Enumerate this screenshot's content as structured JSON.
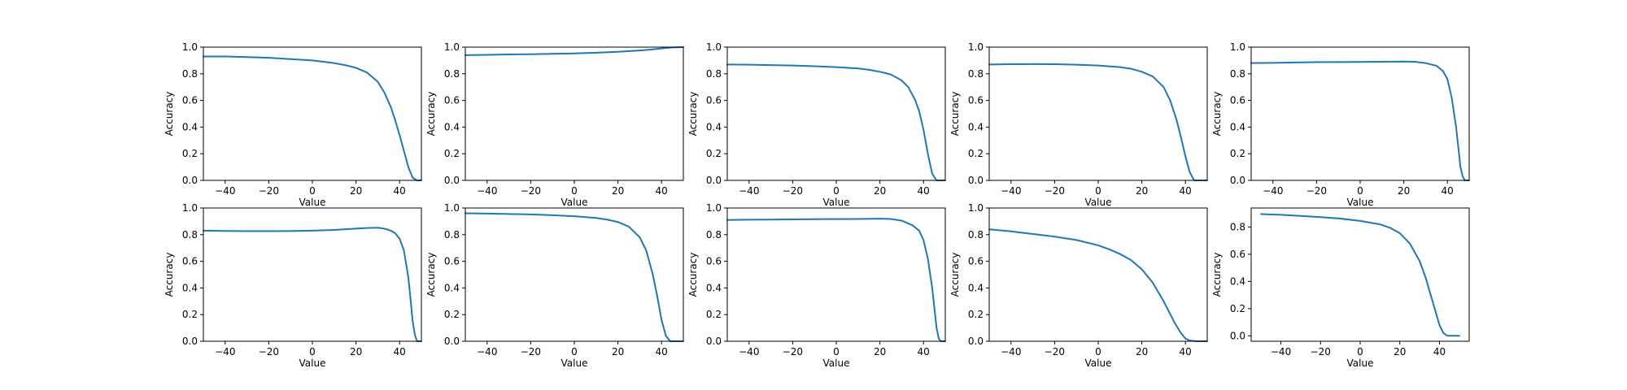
{
  "colors": {
    "line": "#1f77b4",
    "axis": "#000000",
    "background": "#ffffff"
  },
  "chart_data": [
    {
      "type": "line",
      "title": "",
      "xlabel": "Value",
      "ylabel": "Accuracy",
      "xlim": [
        -50,
        50
      ],
      "ylim": [
        0,
        1
      ],
      "xticks": [
        -40,
        -20,
        0,
        20,
        40
      ],
      "yticks": [
        0,
        0.2,
        0.4,
        0.6,
        0.8,
        1
      ],
      "xtick_labels": [
        "−40",
        "−20",
        "0",
        "20",
        "40"
      ],
      "ytick_labels": [
        "0.0",
        "0.2",
        "0.4",
        "0.6",
        "0.8",
        "1.0"
      ],
      "grid": false,
      "x": [
        -50,
        -40,
        -30,
        -20,
        -10,
        0,
        10,
        15,
        20,
        25,
        30,
        33,
        36,
        38,
        40,
        42,
        44,
        46,
        48,
        50
      ],
      "series": [
        {
          "values": [
            0.93,
            0.93,
            0.925,
            0.92,
            0.91,
            0.9,
            0.88,
            0.865,
            0.845,
            0.81,
            0.74,
            0.66,
            0.55,
            0.45,
            0.34,
            0.22,
            0.1,
            0.02,
            0.0,
            0.0
          ]
        }
      ]
    },
    {
      "type": "line",
      "title": "",
      "xlabel": "Value",
      "ylabel": "Accuracy",
      "xlim": [
        -50,
        50
      ],
      "ylim": [
        0,
        1
      ],
      "xticks": [
        -40,
        -20,
        0,
        20,
        40
      ],
      "yticks": [
        0,
        0.2,
        0.4,
        0.6,
        0.8,
        1
      ],
      "xtick_labels": [
        "−40",
        "−20",
        "0",
        "20",
        "40"
      ],
      "ytick_labels": [
        "0.0",
        "0.2",
        "0.4",
        "0.6",
        "0.8",
        "1.0"
      ],
      "grid": false,
      "x": [
        -50,
        -40,
        -30,
        -20,
        -10,
        0,
        10,
        20,
        30,
        35,
        40,
        45,
        50
      ],
      "series": [
        {
          "values": [
            0.94,
            0.942,
            0.945,
            0.947,
            0.95,
            0.953,
            0.958,
            0.965,
            0.975,
            0.982,
            0.99,
            0.998,
            1.0
          ]
        }
      ]
    },
    {
      "type": "line",
      "title": "",
      "xlabel": "Value",
      "ylabel": "Accuracy",
      "xlim": [
        -50,
        50
      ],
      "ylim": [
        0,
        1
      ],
      "xticks": [
        -40,
        -20,
        0,
        20,
        40
      ],
      "yticks": [
        0,
        0.2,
        0.4,
        0.6,
        0.8,
        1
      ],
      "xtick_labels": [
        "−40",
        "−20",
        "0",
        "20",
        "40"
      ],
      "ytick_labels": [
        "0.0",
        "0.2",
        "0.4",
        "0.6",
        "0.8",
        "1.0"
      ],
      "grid": false,
      "x": [
        -50,
        -40,
        -30,
        -20,
        -10,
        0,
        10,
        15,
        20,
        25,
        30,
        33,
        36,
        38,
        40,
        42,
        44,
        46,
        48,
        50
      ],
      "series": [
        {
          "values": [
            0.87,
            0.868,
            0.865,
            0.862,
            0.857,
            0.85,
            0.84,
            0.83,
            0.815,
            0.795,
            0.75,
            0.7,
            0.61,
            0.52,
            0.38,
            0.2,
            0.05,
            0.0,
            0.0,
            0.0
          ]
        }
      ]
    },
    {
      "type": "line",
      "title": "",
      "xlabel": "Value",
      "ylabel": "Accuracy",
      "xlim": [
        -50,
        50
      ],
      "ylim": [
        0,
        1
      ],
      "xticks": [
        -40,
        -20,
        0,
        20,
        40
      ],
      "yticks": [
        0,
        0.2,
        0.4,
        0.6,
        0.8,
        1
      ],
      "xtick_labels": [
        "−40",
        "−20",
        "0",
        "20",
        "40"
      ],
      "ytick_labels": [
        "0.0",
        "0.2",
        "0.4",
        "0.6",
        "0.8",
        "1.0"
      ],
      "grid": false,
      "x": [
        -50,
        -40,
        -30,
        -20,
        -10,
        0,
        10,
        15,
        20,
        25,
        30,
        33,
        36,
        38,
        40,
        42,
        44,
        46,
        48,
        50
      ],
      "series": [
        {
          "values": [
            0.87,
            0.872,
            0.873,
            0.872,
            0.868,
            0.862,
            0.85,
            0.838,
            0.815,
            0.78,
            0.7,
            0.6,
            0.45,
            0.32,
            0.18,
            0.06,
            0.0,
            0.0,
            0.0,
            0.0
          ]
        }
      ]
    },
    {
      "type": "line",
      "title": "",
      "xlabel": "Value",
      "ylabel": "Accuracy",
      "xlim": [
        -50,
        50
      ],
      "ylim": [
        0,
        1
      ],
      "xticks": [
        -40,
        -20,
        0,
        20,
        40
      ],
      "yticks": [
        0,
        0.2,
        0.4,
        0.6,
        0.8,
        1
      ],
      "xtick_labels": [
        "−40",
        "−20",
        "0",
        "20",
        "40"
      ],
      "ytick_labels": [
        "0.0",
        "0.2",
        "0.4",
        "0.6",
        "0.8",
        "1.0"
      ],
      "grid": false,
      "x": [
        -50,
        -40,
        -30,
        -20,
        -10,
        0,
        10,
        20,
        25,
        30,
        35,
        38,
        40,
        42,
        44,
        45,
        46,
        47,
        48,
        50
      ],
      "series": [
        {
          "values": [
            0.88,
            0.882,
            0.885,
            0.887,
            0.888,
            0.889,
            0.89,
            0.892,
            0.89,
            0.88,
            0.86,
            0.82,
            0.76,
            0.62,
            0.4,
            0.25,
            0.1,
            0.03,
            0.0,
            0.0
          ]
        }
      ]
    },
    {
      "type": "line",
      "title": "",
      "xlabel": "Value",
      "ylabel": "Accuracy",
      "xlim": [
        -50,
        50
      ],
      "ylim": [
        0,
        1
      ],
      "xticks": [
        -40,
        -20,
        0,
        20,
        40
      ],
      "yticks": [
        0,
        0.2,
        0.4,
        0.6,
        0.8,
        1
      ],
      "xtick_labels": [
        "−40",
        "−20",
        "0",
        "20",
        "40"
      ],
      "ytick_labels": [
        "0.0",
        "0.2",
        "0.4",
        "0.6",
        "0.8",
        "1.0"
      ],
      "grid": false,
      "x": [
        -50,
        -40,
        -30,
        -20,
        -10,
        0,
        10,
        20,
        25,
        30,
        33,
        36,
        38,
        40,
        42,
        44,
        45,
        46,
        47,
        48,
        50
      ],
      "series": [
        {
          "values": [
            0.83,
            0.828,
            0.826,
            0.826,
            0.827,
            0.83,
            0.835,
            0.845,
            0.85,
            0.852,
            0.845,
            0.83,
            0.81,
            0.77,
            0.68,
            0.48,
            0.32,
            0.15,
            0.05,
            0.0,
            0.0
          ]
        }
      ]
    },
    {
      "type": "line",
      "title": "",
      "xlabel": "Value",
      "ylabel": "Accuracy",
      "xlim": [
        -50,
        50
      ],
      "ylim": [
        0,
        1
      ],
      "xticks": [
        -40,
        -20,
        0,
        20,
        40
      ],
      "yticks": [
        0,
        0.2,
        0.4,
        0.6,
        0.8,
        1
      ],
      "xtick_labels": [
        "−40",
        "−20",
        "0",
        "20",
        "40"
      ],
      "ytick_labels": [
        "0.0",
        "0.2",
        "0.4",
        "0.6",
        "0.8",
        "1.0"
      ],
      "grid": false,
      "x": [
        -50,
        -40,
        -30,
        -20,
        -10,
        0,
        10,
        15,
        20,
        25,
        30,
        33,
        36,
        38,
        40,
        42,
        44,
        46,
        48,
        50
      ],
      "series": [
        {
          "values": [
            0.96,
            0.958,
            0.955,
            0.952,
            0.946,
            0.938,
            0.925,
            0.913,
            0.895,
            0.86,
            0.78,
            0.68,
            0.5,
            0.34,
            0.16,
            0.04,
            0.0,
            0.0,
            0.0,
            0.0
          ]
        }
      ]
    },
    {
      "type": "line",
      "title": "",
      "xlabel": "Value",
      "ylabel": "Accuracy",
      "xlim": [
        -50,
        50
      ],
      "ylim": [
        0,
        1
      ],
      "xticks": [
        -40,
        -20,
        0,
        20,
        40
      ],
      "yticks": [
        0,
        0.2,
        0.4,
        0.6,
        0.8,
        1
      ],
      "xtick_labels": [
        "−40",
        "−20",
        "0",
        "20",
        "40"
      ],
      "ytick_labels": [
        "0.0",
        "0.2",
        "0.4",
        "0.6",
        "0.8",
        "1.0"
      ],
      "grid": false,
      "x": [
        -50,
        -40,
        -30,
        -20,
        -10,
        0,
        10,
        20,
        25,
        30,
        35,
        38,
        40,
        42,
        44,
        45,
        46,
        47,
        48,
        50
      ],
      "series": [
        {
          "values": [
            0.91,
            0.912,
            0.913,
            0.915,
            0.916,
            0.917,
            0.918,
            0.92,
            0.918,
            0.905,
            0.87,
            0.83,
            0.76,
            0.62,
            0.4,
            0.25,
            0.1,
            0.02,
            0.0,
            0.0
          ]
        }
      ]
    },
    {
      "type": "line",
      "title": "",
      "xlabel": "Value",
      "ylabel": "Accuracy",
      "xlim": [
        -50,
        50
      ],
      "ylim": [
        0,
        1
      ],
      "xticks": [
        -40,
        -20,
        0,
        20,
        40
      ],
      "yticks": [
        0,
        0.2,
        0.4,
        0.6,
        0.8,
        1
      ],
      "xtick_labels": [
        "−40",
        "−20",
        "0",
        "20",
        "40"
      ],
      "ytick_labels": [
        "0.0",
        "0.2",
        "0.4",
        "0.6",
        "0.8",
        "1.0"
      ],
      "grid": false,
      "x": [
        -50,
        -40,
        -30,
        -20,
        -10,
        0,
        5,
        10,
        15,
        20,
        25,
        30,
        35,
        38,
        40,
        42,
        45,
        50
      ],
      "series": [
        {
          "values": [
            0.84,
            0.825,
            0.805,
            0.785,
            0.76,
            0.72,
            0.69,
            0.655,
            0.61,
            0.54,
            0.44,
            0.3,
            0.14,
            0.06,
            0.02,
            0.005,
            0.0,
            0.0
          ]
        }
      ]
    },
    {
      "type": "line",
      "title": "",
      "xlabel": "Value",
      "ylabel": "Accuracy",
      "xlim": [
        -55,
        55
      ],
      "ylim": [
        -0.04,
        0.94
      ],
      "xticks": [
        -40,
        -20,
        0,
        20,
        40
      ],
      "yticks": [
        0,
        0.2,
        0.4,
        0.6,
        0.8
      ],
      "xtick_labels": [
        "−40",
        "−20",
        "0",
        "20",
        "40"
      ],
      "ytick_labels": [
        "0.0",
        "0.2",
        "0.4",
        "0.6",
        "0.8"
      ],
      "grid": false,
      "x": [
        -50,
        -40,
        -30,
        -20,
        -10,
        0,
        10,
        15,
        20,
        25,
        30,
        33,
        36,
        38,
        40,
        42,
        44,
        46,
        48,
        50
      ],
      "series": [
        {
          "values": [
            0.895,
            0.89,
            0.882,
            0.873,
            0.862,
            0.845,
            0.82,
            0.795,
            0.755,
            0.68,
            0.55,
            0.43,
            0.28,
            0.18,
            0.08,
            0.02,
            0.0,
            0.0,
            0.0,
            0.0
          ]
        }
      ]
    }
  ]
}
